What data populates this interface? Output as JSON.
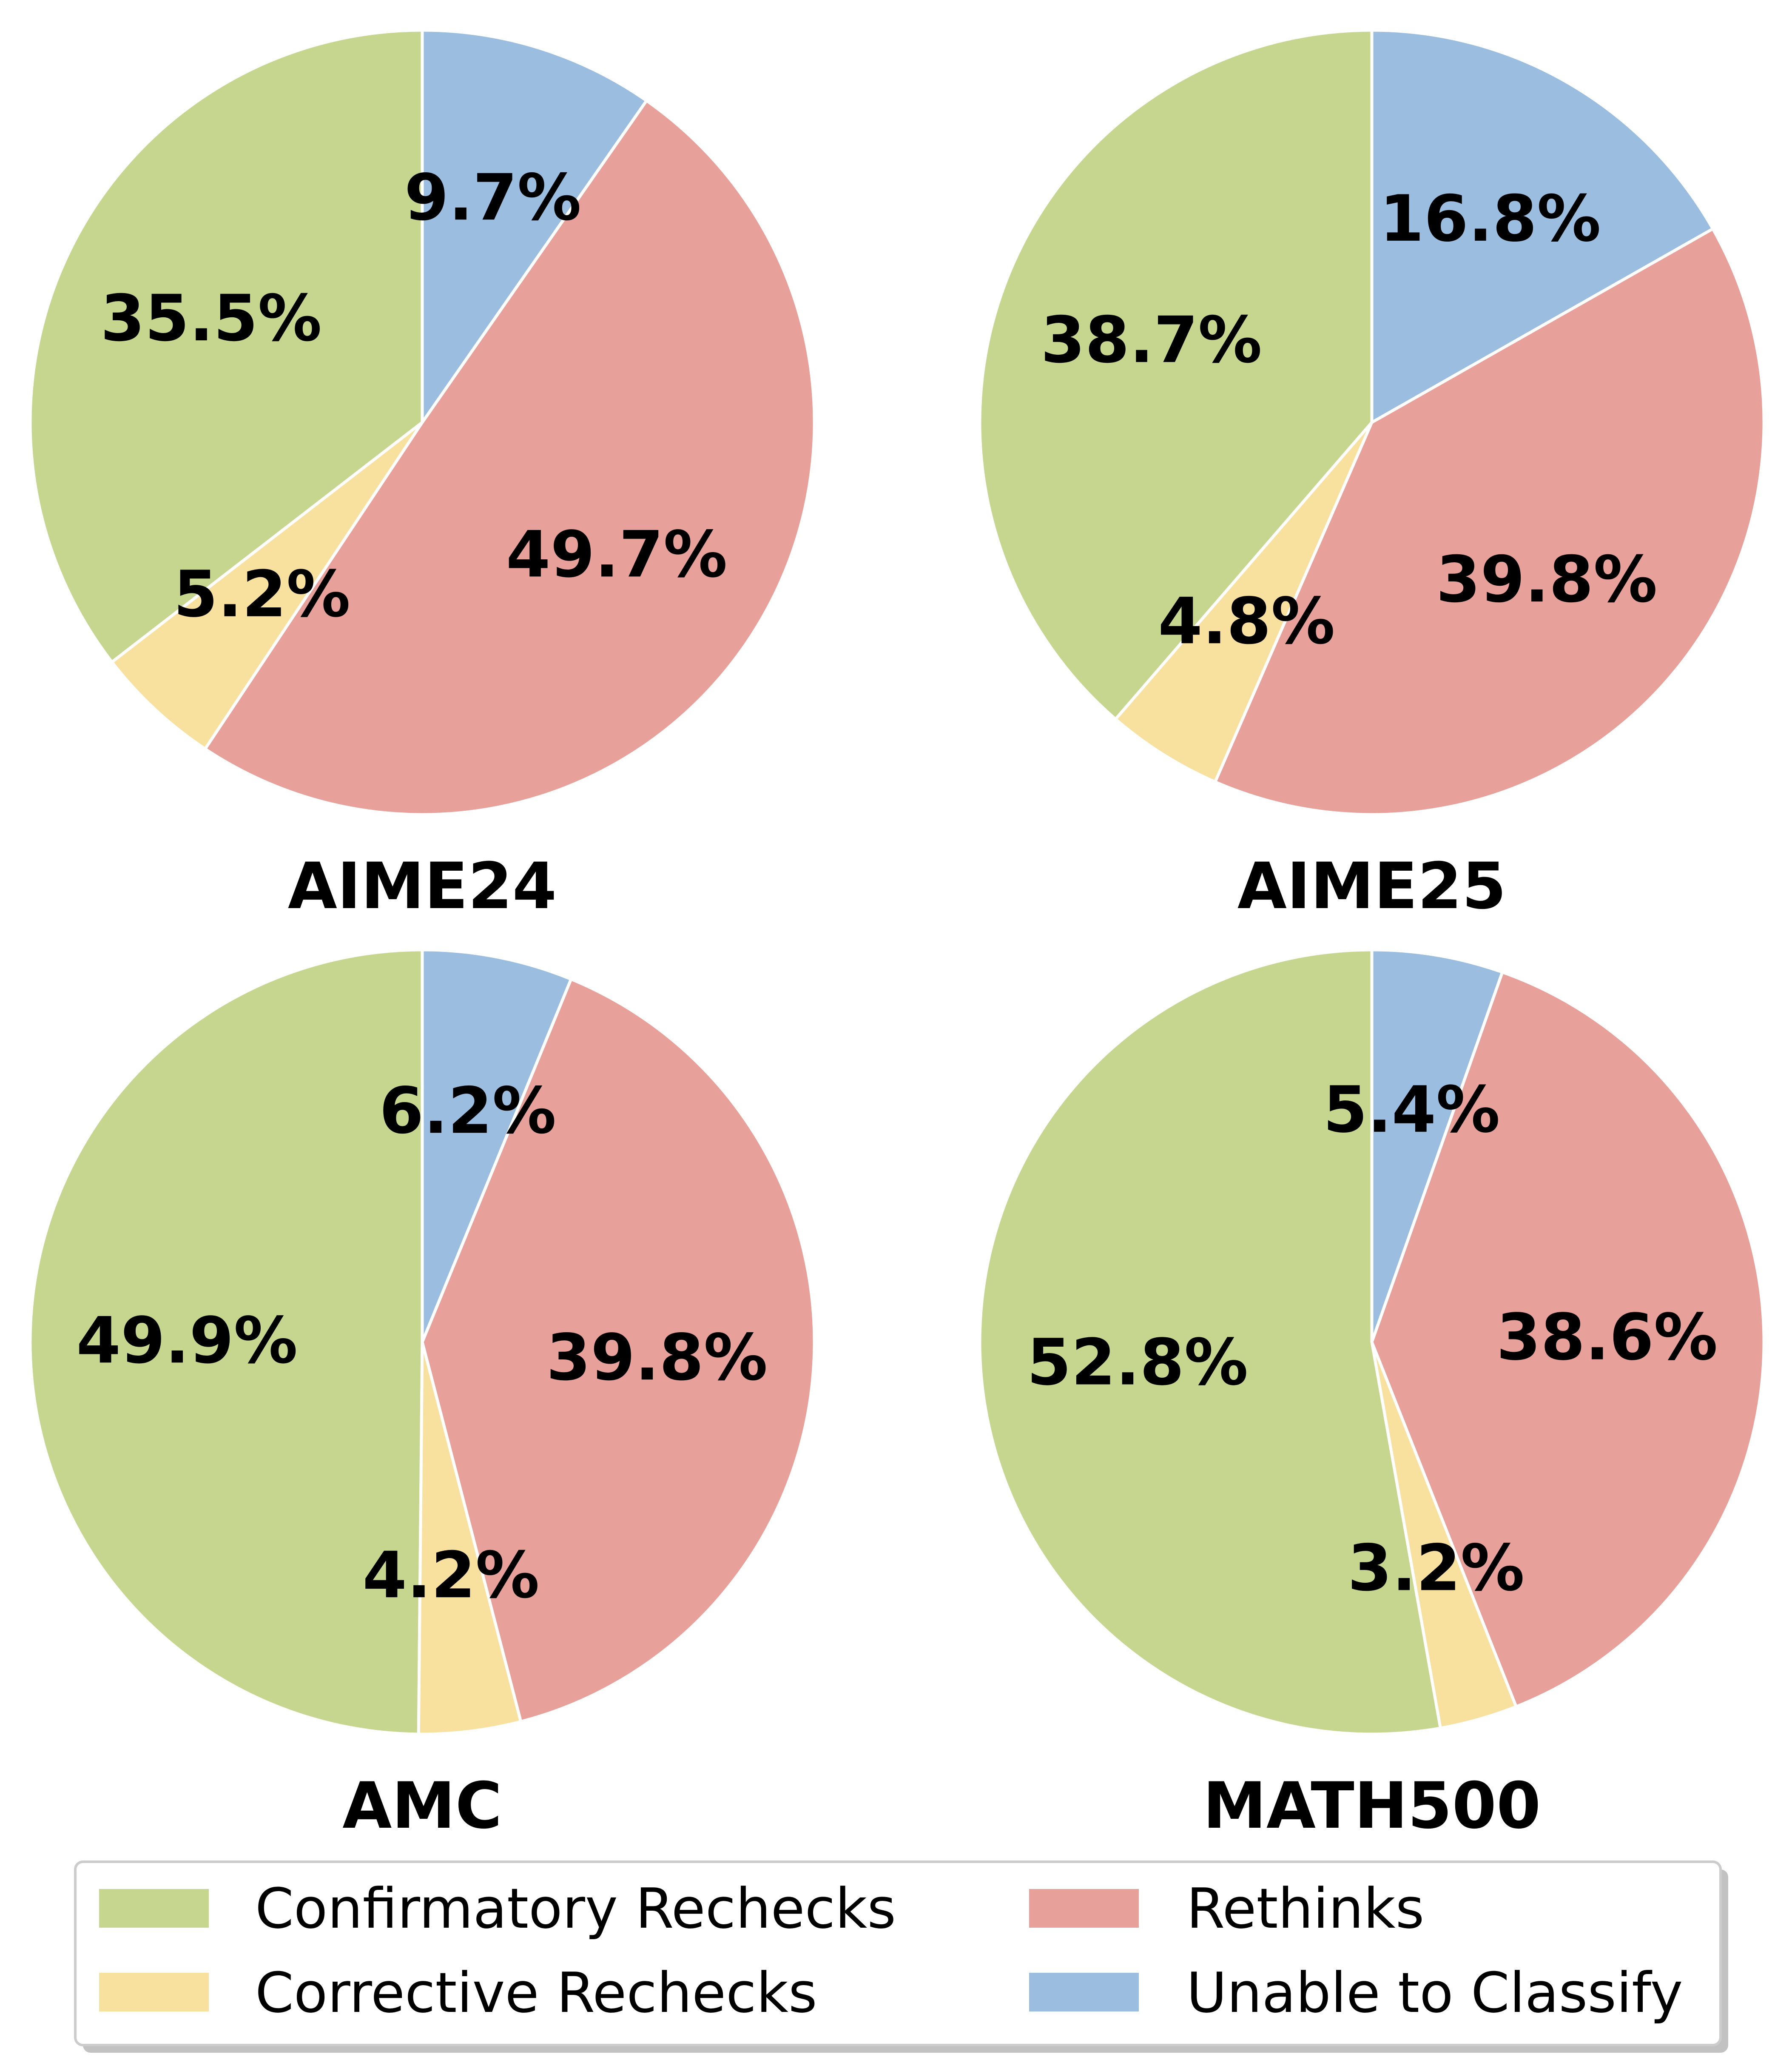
{
  "chart_data": [
    {
      "type": "pie",
      "title": "AIME24",
      "categories": [
        "Confirmatory Rechecks",
        "Corrective Rechecks",
        "Rethinks",
        "Unable to Classify"
      ],
      "values": [
        35.5,
        5.2,
        49.7,
        9.7
      ],
      "labels": [
        "35.5%",
        "5.2%",
        "49.7%",
        "9.7%"
      ]
    },
    {
      "type": "pie",
      "title": "AIME25",
      "categories": [
        "Confirmatory Rechecks",
        "Corrective Rechecks",
        "Rethinks",
        "Unable to Classify"
      ],
      "values": [
        38.7,
        4.8,
        39.8,
        16.8
      ],
      "labels": [
        "38.7%",
        "4.8%",
        "39.8%",
        "16.8%"
      ]
    },
    {
      "type": "pie",
      "title": "AMC",
      "categories": [
        "Confirmatory Rechecks",
        "Corrective Rechecks",
        "Rethinks",
        "Unable to Classify"
      ],
      "values": [
        49.9,
        4.2,
        39.8,
        6.2
      ],
      "labels": [
        "49.9%",
        "4.2%",
        "39.8%",
        "6.2%"
      ]
    },
    {
      "type": "pie",
      "title": "MATH500",
      "categories": [
        "Confirmatory Rechecks",
        "Corrective Rechecks",
        "Rethinks",
        "Unable to Classify"
      ],
      "values": [
        52.8,
        3.2,
        38.6,
        5.4
      ],
      "labels": [
        "52.8%",
        "3.2%",
        "38.6%",
        "5.4%"
      ]
    }
  ],
  "legend": {
    "placement": "bottom-center",
    "items": [
      {
        "label": "Confirmatory Rechecks",
        "color": "#c6d68f"
      },
      {
        "label": "Rethinks",
        "color": "#e8a09a"
      },
      {
        "label": "Corrective Rechecks",
        "color": "#f8e09f"
      },
      {
        "label": "Unable to Classify",
        "color": "#9bbde0"
      }
    ]
  },
  "colors": {
    "Confirmatory Rechecks": "#c6d68f",
    "Corrective Rechecks": "#f8e09f",
    "Rethinks": "#e8a09a",
    "Unable to Classify": "#9bbde0"
  }
}
